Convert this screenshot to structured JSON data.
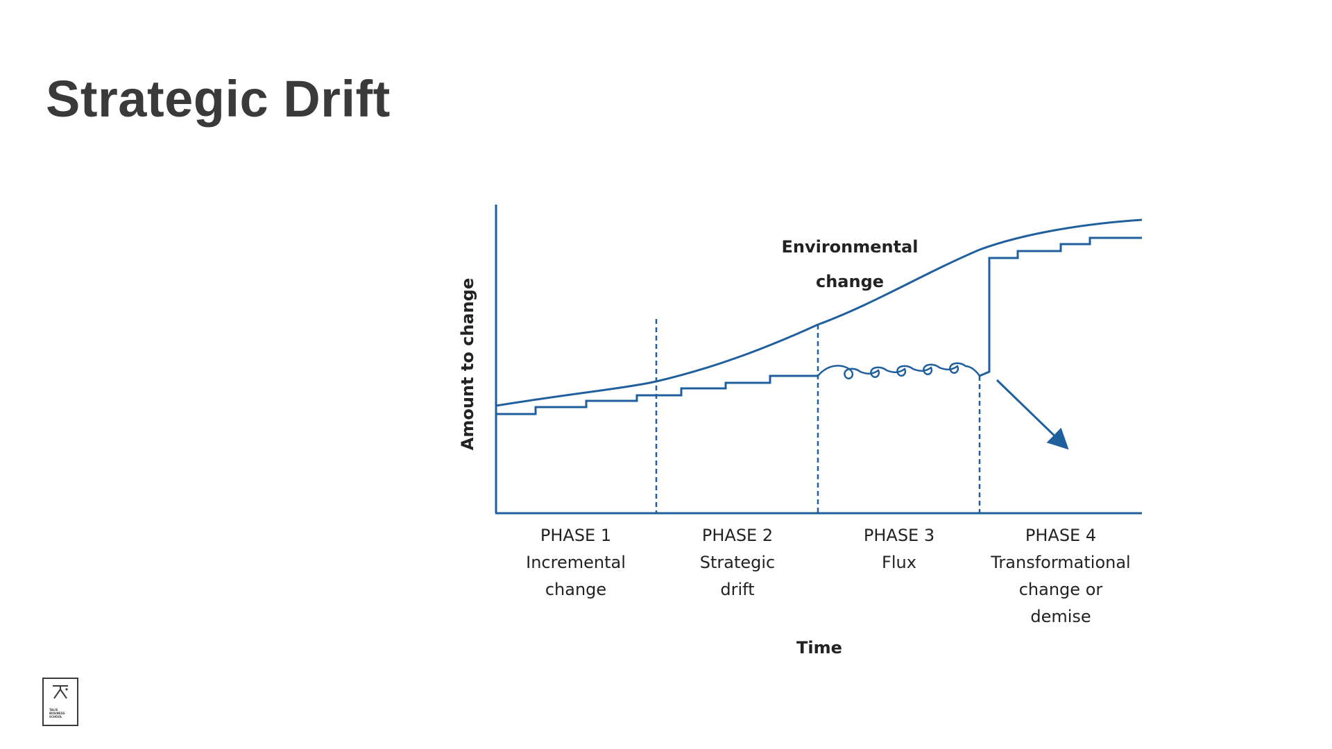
{
  "slide": {
    "title": "Strategic Drift"
  },
  "diagram": {
    "y_axis_label": "Amount to change",
    "x_axis_label": "Time",
    "curve_label_line1": "Environmental",
    "curve_label_line2": "change",
    "phases": [
      {
        "lines": [
          "PHASE 1",
          "Incremental",
          "change"
        ]
      },
      {
        "lines": [
          "PHASE 2",
          "Strategic",
          "drift"
        ]
      },
      {
        "lines": [
          "PHASE 3",
          "Flux"
        ]
      },
      {
        "lines": [
          "PHASE 4",
          "Transformational",
          "change or",
          "demise"
        ]
      }
    ],
    "line_color": "#1f5f9e"
  },
  "logo": {
    "lines": [
      "TALIS",
      "BUSINESS",
      "SCHOOL"
    ]
  }
}
